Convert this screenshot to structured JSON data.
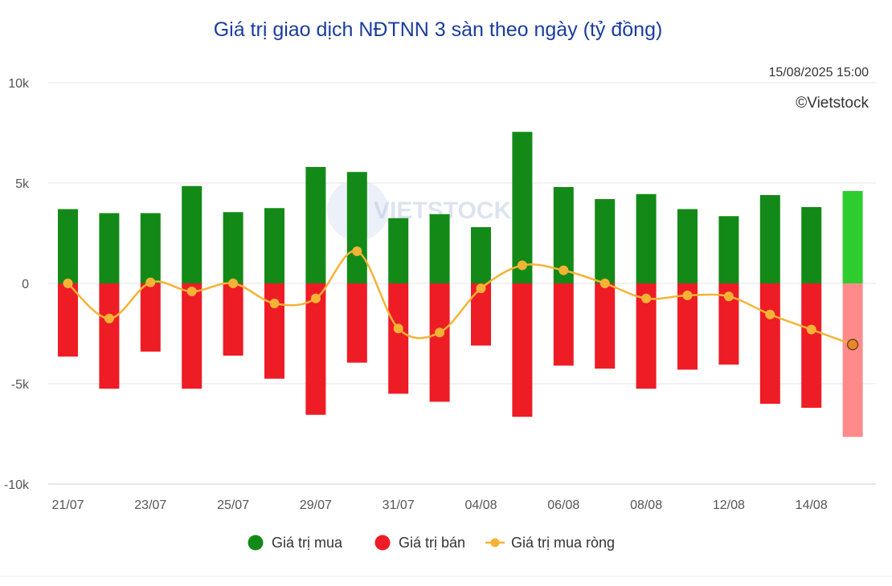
{
  "chart_data": {
    "type": "bar",
    "title": "Giá trị giao dịch NĐTNN 3 sàn theo ngày (tỷ đồng)",
    "timestamp": "15/08/2025 15:00",
    "brand": "©Vietstock",
    "watermark": "VIETSTOCK",
    "ylim": [
      -10000,
      10000
    ],
    "y_ticks": [
      {
        "value": 10000,
        "label": "10k"
      },
      {
        "value": 5000,
        "label": "5k"
      },
      {
        "value": 0,
        "label": "0"
      },
      {
        "value": -5000,
        "label": "-5k"
      },
      {
        "value": -10000,
        "label": "-10k"
      }
    ],
    "categories": [
      "21/07",
      "22/07",
      "23/07",
      "24/07",
      "25/07",
      "28/07",
      "29/07",
      "30/07",
      "31/07",
      "01/08",
      "04/08",
      "05/08",
      "06/08",
      "07/08",
      "08/08",
      "11/08",
      "12/08",
      "13/08",
      "14/08",
      "15/08"
    ],
    "x_tick_labels": [
      "21/07",
      "",
      "23/07",
      "",
      "25/07",
      "",
      "29/07",
      "",
      "31/07",
      "",
      "04/08",
      "",
      "06/08",
      "",
      "08/08",
      "",
      "12/08",
      "",
      "14/08",
      ""
    ],
    "series": [
      {
        "name": "Giá trị mua",
        "kind": "bar",
        "color": "#138a17",
        "highlight_color": "#2ecc2e",
        "values": [
          3700,
          3500,
          3500,
          4850,
          3550,
          3750,
          5800,
          5550,
          3250,
          3450,
          2800,
          7550,
          4800,
          4200,
          4450,
          3700,
          3350,
          4400,
          3800,
          4600
        ]
      },
      {
        "name": "Giá trị bán",
        "kind": "bar",
        "color": "#ee1c25",
        "highlight_color": "#ff8a8a",
        "values": [
          -3650,
          -5250,
          -3400,
          -5250,
          -3600,
          -4750,
          -6550,
          -3950,
          -5500,
          -5900,
          -3100,
          -6650,
          -4100,
          -4250,
          -5250,
          -4300,
          -4050,
          -6000,
          -6200,
          -7650
        ]
      },
      {
        "name": "Giá trị mua ròng",
        "kind": "line",
        "color": "#f5b335",
        "values": [
          0,
          -1750,
          50,
          -400,
          0,
          -1000,
          -750,
          1600,
          -2250,
          -2450,
          -250,
          900,
          650,
          0,
          -750,
          -600,
          -650,
          -1550,
          -2300,
          -3050
        ]
      }
    ],
    "legend": {
      "placement": "bottom-center"
    },
    "grid": true
  }
}
